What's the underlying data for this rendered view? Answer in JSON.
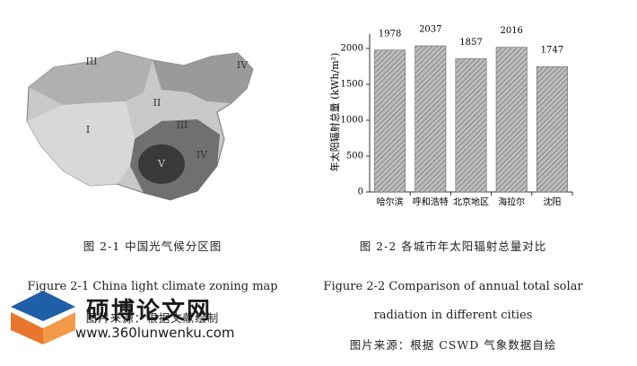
{
  "left_figure": {
    "map_labels": [
      "III",
      "IV",
      "II",
      "I",
      "III",
      "V",
      "IV"
    ],
    "caption_cn": "图 2-1  中国光气候分区图",
    "caption_en": "Figure 2-1 China light climate zoning map",
    "source": "图片来源：根据文献绘制"
  },
  "chart_data": {
    "type": "bar",
    "ylabel": "年太阳辐射总量 (kWh/m²)",
    "categories": [
      "哈尔滨",
      "呼和浩特",
      "北京地区",
      "海拉尔",
      "沈阳"
    ],
    "values": [
      1978,
      2037,
      1857,
      2016,
      1747
    ],
    "ylim": [
      0,
      2200
    ],
    "yticks": [
      0,
      500,
      1000,
      1500,
      2000
    ],
    "grid": false
  },
  "right_figure": {
    "caption_cn": "图 2-2  各城市年太阳辐射总量对比",
    "caption_en": [
      "Figure 2-2 Comparison of annual total solar",
      "radiation in different cities"
    ],
    "source": "图片来源：根据 CSWD 气象数据自绘"
  },
  "watermark": {
    "name": "硕博论文网",
    "url": "www.360lunwenku.com"
  }
}
